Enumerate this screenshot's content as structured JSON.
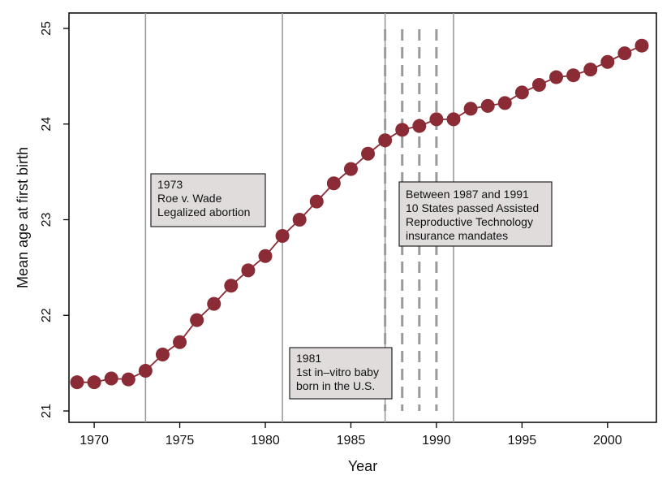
{
  "chart_data": {
    "type": "line",
    "xlabel": "Year",
    "ylabel": "Mean age at first birth",
    "xlim": [
      1968.5,
      2002.5
    ],
    "ylim": [
      21.0,
      25.0
    ],
    "grid": false,
    "x_ticks": [
      1970,
      1975,
      1980,
      1985,
      1990,
      1995,
      2000
    ],
    "x_tick_labels": [
      "1970",
      "1975",
      "1980",
      "1985",
      "1990",
      "1995",
      "2000"
    ],
    "y_ticks": [
      21,
      22,
      23,
      24,
      25
    ],
    "y_tick_labels": [
      "21",
      "22",
      "23",
      "24",
      "25"
    ],
    "series": [
      {
        "x": [
          1969,
          1970,
          1971,
          1972,
          1973,
          1974,
          1975,
          1976,
          1977,
          1978,
          1979,
          1980,
          1981,
          1982,
          1983,
          1984,
          1985,
          1986,
          1987,
          1988,
          1989,
          1990,
          1991,
          1992,
          1993,
          1994,
          1995,
          1996,
          1997,
          1998,
          1999,
          2000,
          2001,
          2002
        ],
        "y": [
          21.3,
          21.3,
          21.34,
          21.33,
          21.42,
          21.59,
          21.72,
          21.95,
          22.12,
          22.31,
          22.47,
          22.62,
          22.83,
          23.0,
          23.19,
          23.38,
          23.53,
          23.69,
          23.83,
          23.94,
          23.98,
          24.05,
          24.05,
          24.16,
          24.19,
          24.22,
          24.33,
          24.41,
          24.49,
          24.51,
          24.57,
          24.65,
          24.74,
          24.82
        ]
      }
    ],
    "reference_lines": [
      {
        "x": 1973,
        "style": "solid"
      },
      {
        "x": 1981,
        "style": "solid"
      },
      {
        "x": 1987,
        "style": "solid"
      },
      {
        "x": 1991,
        "style": "solid"
      },
      {
        "x": 1987,
        "style": "dashed"
      },
      {
        "x": 1988,
        "style": "dashed"
      },
      {
        "x": 1989,
        "style": "dashed"
      },
      {
        "x": 1990,
        "style": "dashed"
      }
    ],
    "annotations": [
      {
        "lines": [
          "1973",
          "Roe v. Wade",
          "Legalized abortion"
        ]
      },
      {
        "lines": [
          "1981",
          "1st in–vitro baby",
          "born in the U.S."
        ]
      },
      {
        "lines": [
          "Between 1987 and 1991",
          "10 States passed Assisted",
          "Reproductive Technology",
          "insurance mandates"
        ]
      }
    ],
    "colors": {
      "line": "#8b2b36",
      "marker": "#8b2b36",
      "reference": "#9a9a9a",
      "note_fill": "#e0dcdc",
      "note_border": "#222222"
    }
  }
}
